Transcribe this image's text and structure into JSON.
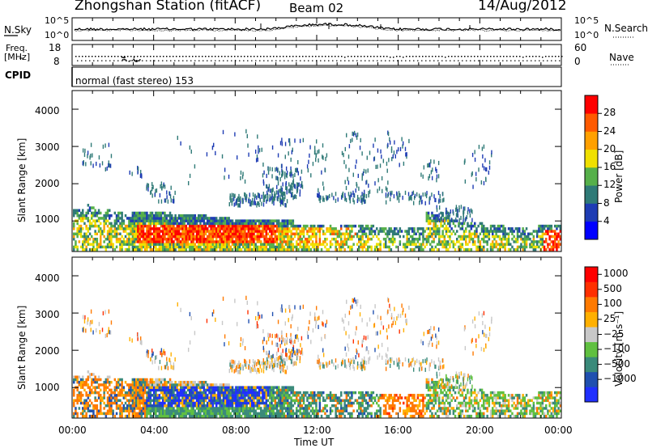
{
  "header": {
    "title": "Zhongshan Station (fitACF)",
    "beam": "Beam 02",
    "date": "14/Aug/2012"
  },
  "chart_data": [
    {
      "type": "line",
      "panel": "noise",
      "left_label": "N.Sky",
      "right_label": "N.Search",
      "yticks_left": [
        "10^5",
        "10^0"
      ],
      "yticks_right": [
        "10^5",
        "10^0"
      ],
      "yscale": "log"
    },
    {
      "type": "scatter",
      "panel": "frequency",
      "left_label_top": "Freq.",
      "left_label_bottom": "[MHz]",
      "right_label": "Nave",
      "yticks_left": [
        "18",
        "8"
      ],
      "yticks_right": [
        "60",
        "0"
      ]
    },
    {
      "type": "table",
      "panel": "cpid",
      "label": "CPID",
      "value": "normal (fast stereo) 153"
    },
    {
      "type": "heatmap",
      "panel": "power",
      "ylabel": "Slant Range [km]",
      "yticks": [
        "1000",
        "2000",
        "3000",
        "4000"
      ],
      "ylim": [
        180,
        4500
      ],
      "colorbar_label": "Power [dB]",
      "colorbar_ticks": [
        "28",
        "24",
        "20",
        "16",
        "12",
        "8",
        "4"
      ],
      "colors": [
        "#0000ff",
        "#1e3cb4",
        "#2f7a77",
        "#56b04a",
        "#f0e000",
        "#ffa000",
        "#ff5a00",
        "#ff0000"
      ]
    },
    {
      "type": "heatmap",
      "panel": "velocity",
      "ylabel": "Slant Range [km]",
      "yticks": [
        "1000",
        "2000",
        "3000",
        "4000"
      ],
      "ylim": [
        180,
        4500
      ],
      "colorbar_label": "Velocity [m s⁻¹]",
      "colorbar_ticks": [
        "1000",
        "500",
        "100",
        "25",
        "−25",
        "−100",
        "−500",
        "−1000"
      ],
      "colors": [
        "#2030ff",
        "#2050b0",
        "#3a8a7a",
        "#60c040",
        "#c8c8c8",
        "#ffb000",
        "#ff7a00",
        "#ff3000",
        "#ff0000"
      ]
    }
  ],
  "xaxis": {
    "label": "Time UT",
    "ticks": [
      "00:00",
      "04:00",
      "08:00",
      "12:00",
      "16:00",
      "20:00",
      "00:00"
    ]
  }
}
